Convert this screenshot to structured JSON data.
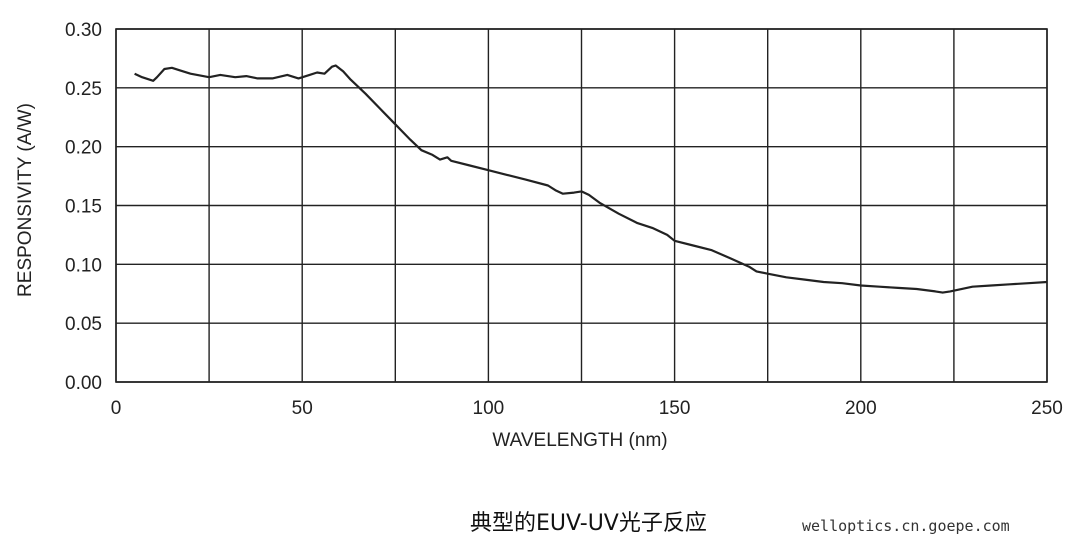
{
  "chart_data": {
    "type": "line",
    "title": "",
    "xlabel": "WAVELENGTH (nm)",
    "ylabel": "RESPONSIVITY (A/W)",
    "xlim": [
      0,
      250
    ],
    "ylim": [
      0,
      0.3
    ],
    "x_ticks": [
      "0",
      "50",
      "100",
      "150",
      "200",
      "250"
    ],
    "y_ticks": [
      "0.00",
      "0.05",
      "0.10",
      "0.15",
      "0.20",
      "0.25",
      "0.30"
    ],
    "x_grid_step": 25,
    "y_grid_step": 0.05,
    "grid": true,
    "line_color": "#222222",
    "series": [
      {
        "x": [
          5,
          7,
          10,
          11,
          13,
          15,
          17,
          20,
          25,
          28,
          32,
          35,
          38,
          42,
          46,
          49,
          52,
          54,
          56,
          58,
          59,
          61,
          63,
          67,
          71,
          75,
          79,
          82,
          85,
          87,
          89,
          90,
          95,
          100,
          105,
          110,
          116,
          118,
          120,
          123,
          125,
          127,
          130,
          135,
          140,
          144,
          148,
          150,
          155,
          160,
          165,
          170,
          172,
          175,
          180,
          185,
          190,
          195,
          200,
          205,
          210,
          215,
          220,
          222,
          224,
          230,
          235,
          240,
          245,
          250
        ],
        "y": [
          0.262,
          0.259,
          0.256,
          0.259,
          0.266,
          0.267,
          0.265,
          0.262,
          0.259,
          0.261,
          0.259,
          0.26,
          0.258,
          0.258,
          0.261,
          0.258,
          0.261,
          0.263,
          0.262,
          0.268,
          0.269,
          0.264,
          0.257,
          0.245,
          0.232,
          0.219,
          0.206,
          0.197,
          0.193,
          0.189,
          0.191,
          0.188,
          0.184,
          0.18,
          0.176,
          0.172,
          0.167,
          0.163,
          0.16,
          0.161,
          0.162,
          0.159,
          0.152,
          0.143,
          0.135,
          0.131,
          0.125,
          0.12,
          0.116,
          0.112,
          0.105,
          0.098,
          0.094,
          0.092,
          0.089,
          0.087,
          0.085,
          0.084,
          0.082,
          0.081,
          0.08,
          0.079,
          0.077,
          0.076,
          0.077,
          0.081,
          0.082,
          0.083,
          0.084,
          0.085
        ]
      }
    ]
  },
  "caption": "典型的EUV-UV光子反应",
  "watermark": "welloptics.cn.goepe.com"
}
